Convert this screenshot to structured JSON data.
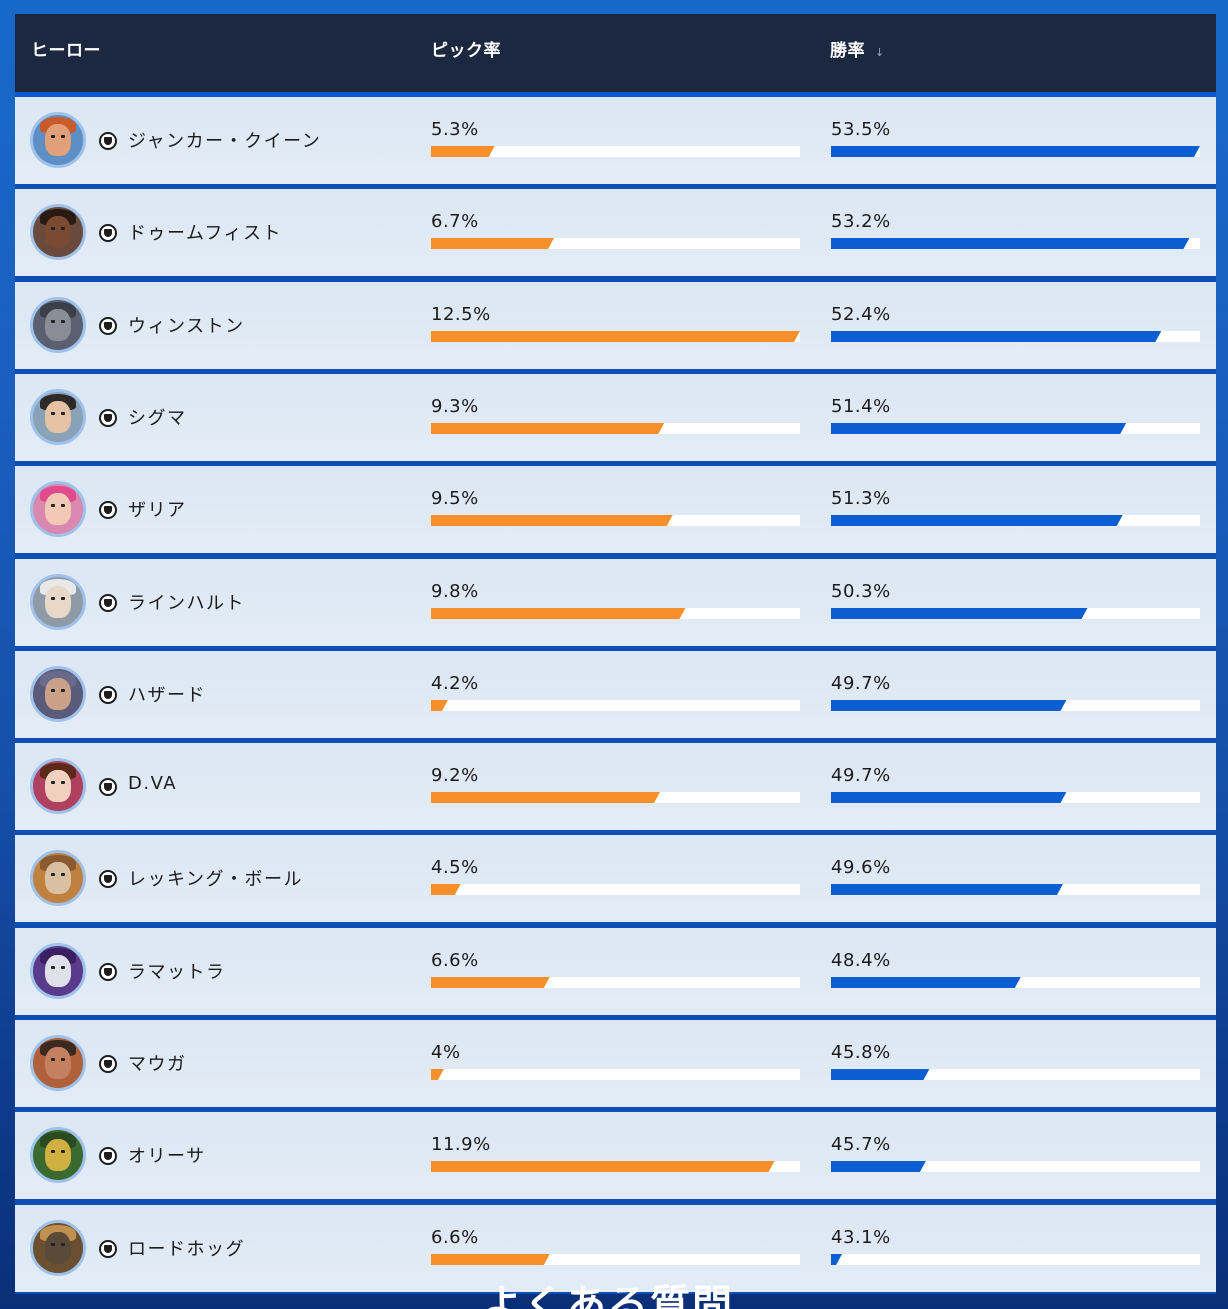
{
  "header": {
    "hero_label": "ヒーロー",
    "pick_label": "ピック率",
    "win_label": "勝率",
    "sort_indicator": "↓"
  },
  "colors": {
    "pick_bar": "#f7902a",
    "win_bar": "#0b5ed1",
    "header_bg": "#1c2840",
    "row_bg": "#dce7f4"
  },
  "heroes": [
    {
      "name": "ジャンカー・クイーン",
      "pick_label": "5.3%",
      "win_label": "53.5%",
      "pick_rate": 5.3,
      "win_rate": 53.5,
      "icon": "junker-queen-portrait-icon"
    },
    {
      "name": "ドゥームフィスト",
      "pick_label": "6.7%",
      "win_label": "53.2%",
      "pick_rate": 6.7,
      "win_rate": 53.2,
      "icon": "doomfist-portrait-icon"
    },
    {
      "name": "ウィンストン",
      "pick_label": "12.5%",
      "win_label": "52.4%",
      "pick_rate": 12.5,
      "win_rate": 52.4,
      "icon": "winston-portrait-icon"
    },
    {
      "name": "シグマ",
      "pick_label": "9.3%",
      "win_label": "51.4%",
      "pick_rate": 9.3,
      "win_rate": 51.4,
      "icon": "sigma-portrait-icon"
    },
    {
      "name": "ザリア",
      "pick_label": "9.5%",
      "win_label": "51.3%",
      "pick_rate": 9.5,
      "win_rate": 51.3,
      "icon": "zarya-portrait-icon"
    },
    {
      "name": "ラインハルト",
      "pick_label": "9.8%",
      "win_label": "50.3%",
      "pick_rate": 9.8,
      "win_rate": 50.3,
      "icon": "reinhardt-portrait-icon"
    },
    {
      "name": "ハザード",
      "pick_label": "4.2%",
      "win_label": "49.7%",
      "pick_rate": 4.2,
      "win_rate": 49.7,
      "icon": "hazard-portrait-icon"
    },
    {
      "name": "D.VA",
      "pick_label": "9.2%",
      "win_label": "49.7%",
      "pick_rate": 9.2,
      "win_rate": 49.7,
      "icon": "dva-portrait-icon"
    },
    {
      "name": "レッキング・ボール",
      "pick_label": "4.5%",
      "win_label": "49.6%",
      "pick_rate": 4.5,
      "win_rate": 49.6,
      "icon": "wrecking-ball-portrait-icon"
    },
    {
      "name": "ラマットラ",
      "pick_label": "6.6%",
      "win_label": "48.4%",
      "pick_rate": 6.6,
      "win_rate": 48.4,
      "icon": "ramattra-portrait-icon"
    },
    {
      "name": "マウガ",
      "pick_label": "4%",
      "win_label": "45.8%",
      "pick_rate": 4.0,
      "win_rate": 45.8,
      "icon": "mauga-portrait-icon"
    },
    {
      "name": "オリーサ",
      "pick_label": "11.9%",
      "win_label": "45.7%",
      "pick_rate": 11.9,
      "win_rate": 45.7,
      "icon": "orisa-portrait-icon"
    },
    {
      "name": "ロードホッグ",
      "pick_label": "6.6%",
      "win_label": "43.1%",
      "pick_rate": 6.6,
      "win_rate": 43.1,
      "icon": "roadhog-portrait-icon"
    }
  ],
  "scale": {
    "pick_min": 3.8,
    "pick_max": 12.5,
    "win_min": 43.0,
    "win_max": 53.5
  },
  "portrait_colors": [
    {
      "bg": "#5d8fc4",
      "face": "#e2a07a",
      "hair": "#c95a2a"
    },
    {
      "bg": "#6a4a3c",
      "face": "#7a4a32",
      "hair": "#2a1a14"
    },
    {
      "bg": "#5a6070",
      "face": "#8a8d96",
      "hair": "#3b3f48"
    },
    {
      "bg": "#8aa2b8",
      "face": "#e5c2a4",
      "hair": "#2e2a2a"
    },
    {
      "bg": "#d988b0",
      "face": "#f1c9b5",
      "hair": "#e14b8e"
    },
    {
      "bg": "#8e9aa6",
      "face": "#e8d8c8",
      "hair": "#e8e8e8"
    },
    {
      "bg": "#5a5a7a",
      "face": "#c9a088",
      "hair": "#6a6a8a"
    },
    {
      "bg": "#b04060",
      "face": "#f2d0c0",
      "hair": "#5a2a1a"
    },
    {
      "bg": "#c08040",
      "face": "#d8c0a0",
      "hair": "#8a5a30"
    },
    {
      "bg": "#5a3a8a",
      "face": "#e0e0ea",
      "hair": "#3a2060"
    },
    {
      "bg": "#b0603a",
      "face": "#c48060",
      "hair": "#3a2a20"
    },
    {
      "bg": "#3a6a30",
      "face": "#d0b040",
      "hair": "#2a4a20"
    },
    {
      "bg": "#6a5030",
      "face": "#5a4a3a",
      "hair": "#c09050"
    }
  ],
  "footer": {
    "faq_title": "よくある質問"
  }
}
